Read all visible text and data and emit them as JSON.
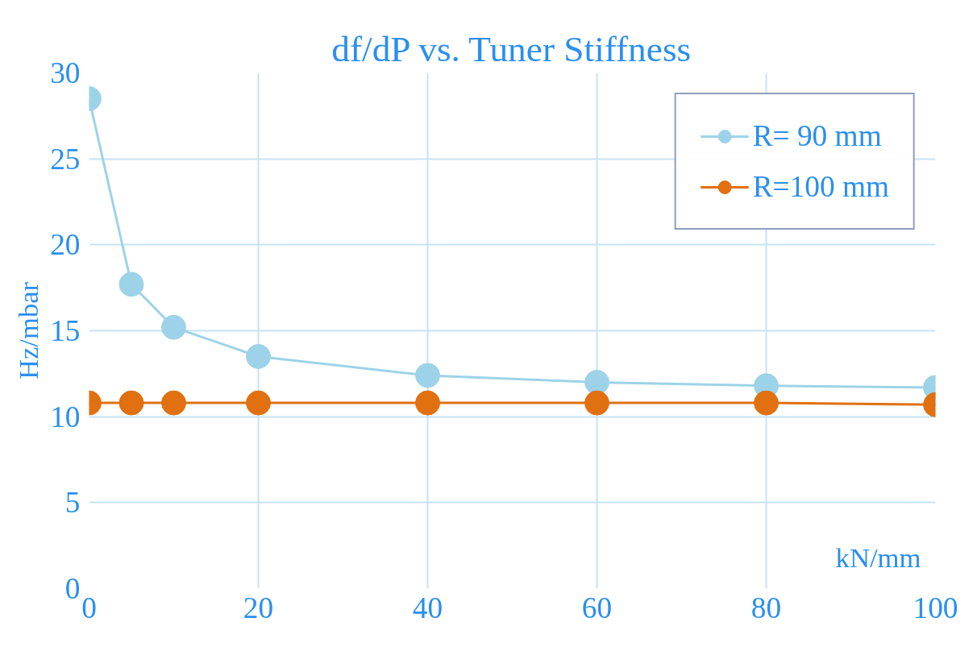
{
  "chart_data": {
    "type": "line",
    "title": "df/dP vs. Tuner Stiffness",
    "xlabel": "kN/mm",
    "ylabel": "Hz/mbar",
    "x": [
      0,
      5,
      10,
      20,
      40,
      60,
      80,
      100
    ],
    "series": [
      {
        "name": "R= 90 mm",
        "color": "#9dd3e8",
        "values": [
          28.5,
          17.7,
          15.2,
          13.5,
          12.4,
          12.0,
          11.8,
          11.7
        ]
      },
      {
        "name": "R=100 mm",
        "color": "#e07010",
        "values": [
          10.8,
          10.8,
          10.8,
          10.8,
          10.8,
          10.8,
          10.8,
          10.7
        ]
      }
    ],
    "xlim": [
      0,
      100
    ],
    "ylim": [
      0,
      30
    ],
    "xticks": [
      0,
      20,
      40,
      60,
      80,
      100
    ],
    "yticks": [
      0,
      5,
      10,
      15,
      20,
      25,
      30
    ],
    "grid": true,
    "legend": "top right",
    "marker": "circle",
    "line_style": "solid"
  }
}
